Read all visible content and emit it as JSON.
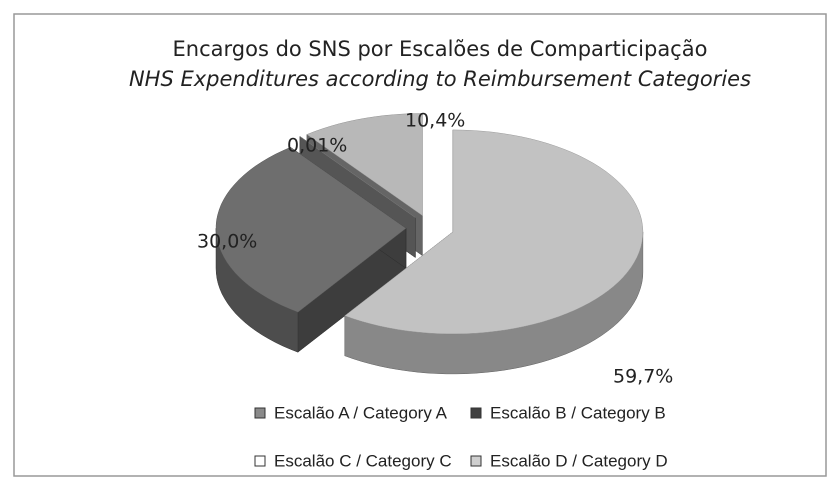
{
  "chart_data": {
    "type": "pie3d",
    "title": "Encargos do SNS por Escalões de Comparticipação",
    "subtitle": "NHS Expenditures according to Reimbursement Categories",
    "categories": [
      "Escalão A / Category A",
      "Escalão B / Category B",
      "Escalão C / Category C",
      "Escalão D / Category D"
    ],
    "values": [
      59.7,
      30.0,
      0.01,
      10.4
    ],
    "value_labels": [
      "59,7%",
      "30,0%",
      "0,01%",
      "10,4%"
    ],
    "colors": [
      "#c2c2c2",
      "#6e6e6e",
      "#9a9a9a",
      "#b8b8b8"
    ],
    "legend_colors": [
      "#8a8a8a",
      "#404040",
      "#ffffff",
      "#cfcfcf"
    ]
  }
}
